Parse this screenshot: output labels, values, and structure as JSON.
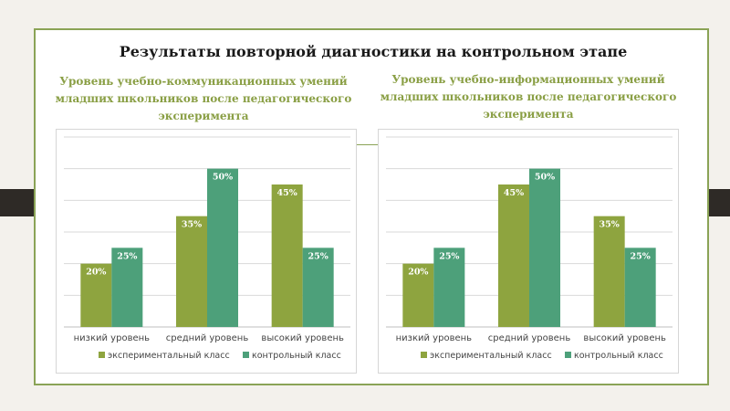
{
  "slide_title": "Результаты повторной диагностики на контрольном этапе",
  "colors": {
    "experimental": "#8ea43f",
    "control": "#4da07a",
    "accent": "#8aa356",
    "grid": "#d9d9d9"
  },
  "chart_data": [
    {
      "type": "bar",
      "title": "Уровень учебно-коммуникационных умений младших школьников после педагогического эксперимента",
      "categories": [
        "низкий уровень",
        "средний уровень",
        "высокий уровень"
      ],
      "series": [
        {
          "name": "экспериментальный класс",
          "values": [
            20,
            35,
            45
          ],
          "labels": [
            "20%",
            "35%",
            "45%"
          ]
        },
        {
          "name": "контрольный класс",
          "values": [
            25,
            50,
            25
          ],
          "labels": [
            "25%",
            "50%",
            "25%"
          ]
        }
      ],
      "ylim": [
        0,
        60
      ],
      "grid": true,
      "legend_position": "bottom"
    },
    {
      "type": "bar",
      "title": "Уровень учебно-информационных умений младших школьников после педагогического эксперимента",
      "categories": [
        "низкий уровень",
        "средний уровень",
        "высокий уровень"
      ],
      "series": [
        {
          "name": "экспериментальный класс",
          "values": [
            20,
            45,
            35
          ],
          "labels": [
            "20%",
            "45%",
            "35%"
          ]
        },
        {
          "name": "контрольный класс",
          "values": [
            25,
            50,
            25
          ],
          "labels": [
            "25%",
            "50%",
            "25%"
          ]
        }
      ],
      "ylim": [
        0,
        60
      ],
      "grid": true,
      "legend_position": "bottom"
    }
  ]
}
